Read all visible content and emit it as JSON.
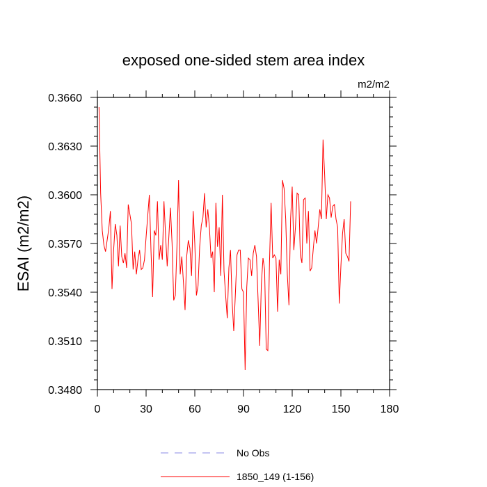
{
  "chart_data": {
    "type": "line",
    "title": "exposed one-sided stem area index",
    "units_label": "m2/m2",
    "xlabel": "",
    "ylabel": "ESAI  (m2/m2)",
    "xlim": [
      0,
      180
    ],
    "ylim": [
      0.348,
      0.366
    ],
    "x_ticks": [
      0,
      30,
      60,
      90,
      120,
      150,
      180
    ],
    "y_ticks": [
      0.348,
      0.351,
      0.354,
      0.357,
      0.36,
      0.363,
      0.366
    ],
    "y_tick_labels": [
      "0.3480",
      "0.3510",
      "0.3540",
      "0.3570",
      "0.3600",
      "0.3630",
      "0.3660"
    ],
    "legend": [
      {
        "label": "No Obs",
        "color": "#8a8ae6",
        "dash": true
      },
      {
        "label": "1850_149 (1-156)",
        "color": "#ff0000",
        "dash": false
      }
    ],
    "series": [
      {
        "name": "1850_149 (1-156)",
        "color": "#ff0000",
        "x_start": 1,
        "values": [
          0.3654,
          0.3601,
          0.3578,
          0.3569,
          0.3565,
          0.3572,
          0.3579,
          0.359,
          0.3542,
          0.3566,
          0.3582,
          0.3575,
          0.3556,
          0.3581,
          0.3562,
          0.3558,
          0.3564,
          0.3555,
          0.3594,
          0.3588,
          0.3582,
          0.3554,
          0.3565,
          0.3551,
          0.356,
          0.3566,
          0.3554,
          0.3555,
          0.356,
          0.3574,
          0.3587,
          0.36,
          0.3566,
          0.3537,
          0.3578,
          0.3575,
          0.3596,
          0.356,
          0.3569,
          0.356,
          0.3596,
          0.3575,
          0.3556,
          0.3574,
          0.3592,
          0.357,
          0.3535,
          0.3538,
          0.3568,
          0.3609,
          0.3551,
          0.3562,
          0.3546,
          0.3529,
          0.3562,
          0.3572,
          0.3567,
          0.355,
          0.359,
          0.357,
          0.3538,
          0.3544,
          0.3568,
          0.3581,
          0.3586,
          0.3601,
          0.358,
          0.3591,
          0.358,
          0.3561,
          0.3565,
          0.354,
          0.3595,
          0.3568,
          0.358,
          0.355,
          0.36,
          0.3553,
          0.3538,
          0.3524,
          0.3555,
          0.3566,
          0.3534,
          0.3516,
          0.3539,
          0.3563,
          0.3566,
          0.3566,
          0.3542,
          0.354,
          0.3492,
          0.3543,
          0.3561,
          0.356,
          0.355,
          0.3564,
          0.3569,
          0.3562,
          0.3535,
          0.3507,
          0.3545,
          0.3561,
          0.3554,
          0.3505,
          0.3504,
          0.3558,
          0.3595,
          0.3561,
          0.3563,
          0.3561,
          0.3528,
          0.356,
          0.3551,
          0.3609,
          0.3604,
          0.3585,
          0.3551,
          0.3532,
          0.3585,
          0.3605,
          0.3566,
          0.358,
          0.3601,
          0.36,
          0.3563,
          0.3558,
          0.3597,
          0.3598,
          0.357,
          0.359,
          0.3553,
          0.3555,
          0.3567,
          0.3578,
          0.357,
          0.358,
          0.3591,
          0.3585,
          0.3634,
          0.3612,
          0.3585,
          0.36,
          0.3598,
          0.3586,
          0.3593,
          0.3594,
          0.3585,
          0.358,
          0.3533,
          0.3556,
          0.3576,
          0.3585,
          0.3564,
          0.3562,
          0.3559,
          0.3596
        ]
      }
    ]
  }
}
